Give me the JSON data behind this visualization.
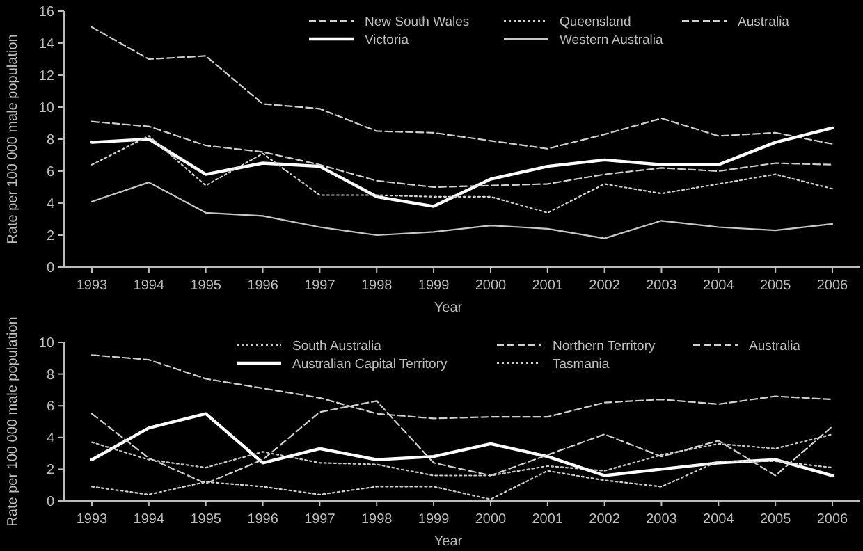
{
  "chart_data": [
    {
      "type": "line",
      "xlabel": "Year",
      "ylabel": "Rate per 100 000 male population",
      "categories": [
        "1993",
        "1994",
        "1995",
        "1996",
        "1997",
        "1998",
        "1999",
        "2000",
        "2001",
        "2002",
        "2003",
        "2004",
        "2005",
        "2006"
      ],
      "ylim": [
        0,
        16
      ],
      "yticks": [
        0,
        2,
        4,
        6,
        8,
        10,
        12,
        14,
        16
      ],
      "legend": "top right",
      "grid": false,
      "marker": "none",
      "series": [
        {
          "name": "New South Wales",
          "color": "#d0d0d0",
          "line_style": "dashed",
          "values": [
            15.0,
            13.0,
            13.2,
            10.2,
            9.9,
            8.5,
            8.4,
            7.9,
            7.4,
            8.3,
            9.3,
            8.2,
            8.4,
            7.7
          ]
        },
        {
          "name": "Victoria",
          "color": "#ffffff",
          "line_style": "solid",
          "values": [
            7.8,
            8.0,
            5.8,
            6.5,
            6.3,
            4.4,
            3.8,
            5.5,
            6.3,
            6.7,
            6.4,
            6.4,
            7.8,
            8.7
          ]
        },
        {
          "name": "Queensland",
          "color": "#d0d0d0",
          "line_style": "dotted",
          "values": [
            6.4,
            8.2,
            5.1,
            7.1,
            4.5,
            4.5,
            4.4,
            4.4,
            3.4,
            5.2,
            4.6,
            5.2,
            5.8,
            4.9
          ]
        },
        {
          "name": "Western Australia",
          "color": "#c8c8c8",
          "line_style": "solid",
          "values": [
            4.1,
            5.3,
            3.4,
            3.2,
            2.5,
            2.0,
            2.2,
            2.6,
            2.4,
            1.8,
            2.9,
            2.5,
            2.3,
            2.7
          ]
        },
        {
          "name": "Australia",
          "color": "#d0d0d0",
          "line_style": "dashed",
          "values": [
            9.1,
            8.8,
            7.6,
            7.2,
            6.4,
            5.4,
            5.0,
            5.1,
            5.2,
            5.8,
            6.2,
            6.0,
            6.5,
            6.4
          ]
        }
      ]
    },
    {
      "type": "line",
      "xlabel": "Year",
      "ylabel": "Rate per 100 000 male population",
      "categories": [
        "1993",
        "1994",
        "1995",
        "1996",
        "1997",
        "1998",
        "1999",
        "2000",
        "2001",
        "2002",
        "2003",
        "2004",
        "2005",
        "2006"
      ],
      "ylim": [
        0,
        10
      ],
      "yticks": [
        0,
        2,
        4,
        6,
        8,
        10
      ],
      "legend": "top right",
      "grid": false,
      "marker": "none",
      "series": [
        {
          "name": "South Australia",
          "color": "#c8c8c8",
          "line_style": "dotted",
          "values": [
            3.7,
            2.6,
            2.1,
            3.1,
            2.4,
            2.3,
            1.6,
            1.6,
            2.2,
            1.9,
            2.9,
            3.6,
            3.3,
            4.2
          ]
        },
        {
          "name": "Australian Capital Territory",
          "color": "#ffffff",
          "line_style": "solid",
          "values": [
            2.6,
            4.6,
            5.5,
            2.4,
            3.3,
            2.6,
            2.8,
            3.6,
            2.8,
            1.6,
            2.0,
            2.4,
            2.6,
            1.6
          ]
        },
        {
          "name": "Northern Territory",
          "color": "#d0d0d0",
          "line_style": "dashed",
          "values": [
            5.5,
            2.7,
            1.1,
            2.6,
            5.6,
            6.3,
            2.4,
            1.6,
            2.9,
            4.2,
            2.8,
            3.8,
            1.6,
            4.7
          ]
        },
        {
          "name": "Tasmania",
          "color": "#d0d0d0",
          "line_style": "dotted",
          "values": [
            0.9,
            0.4,
            1.2,
            0.9,
            0.4,
            0.9,
            0.9,
            0.1,
            1.9,
            1.3,
            0.9,
            2.5,
            2.5,
            2.1
          ]
        },
        {
          "name": "Australia",
          "color": "#d0d0d0",
          "line_style": "dashed",
          "values": [
            9.2,
            8.9,
            7.7,
            7.1,
            6.5,
            5.5,
            5.2,
            5.3,
            5.3,
            6.2,
            6.4,
            6.1,
            6.6,
            6.4
          ]
        }
      ]
    }
  ]
}
